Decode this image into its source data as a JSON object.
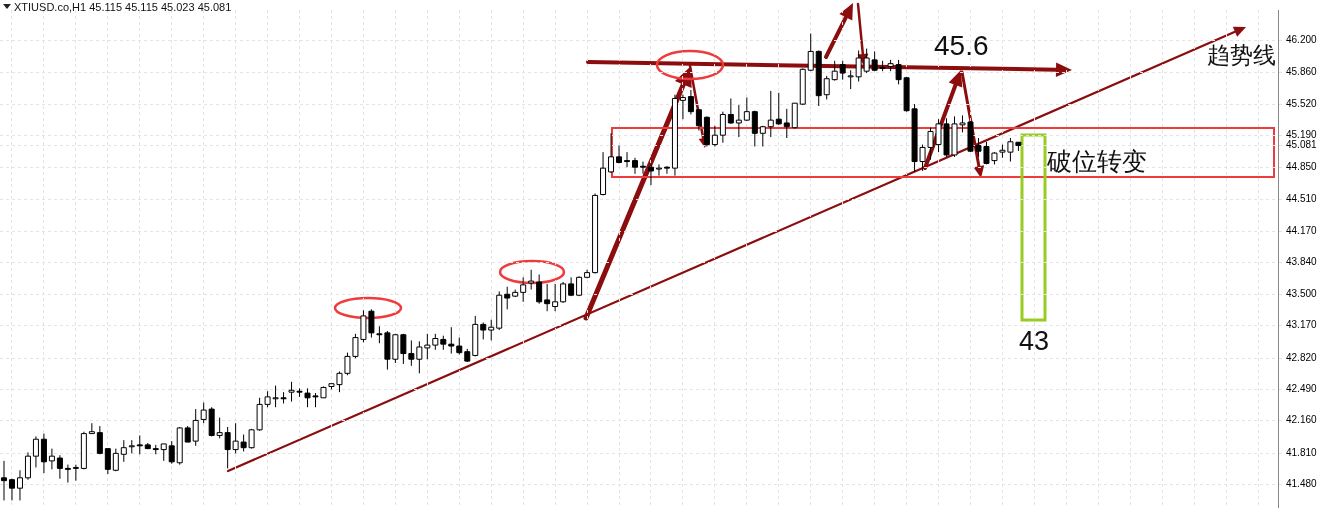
{
  "chart_data": {
    "type": "candlestick",
    "title": "XTIUSD.co,H1  45.115 45.115 45.023 45.081",
    "categories": [
      null,
      null,
      null,
      null,
      null,
      null,
      null,
      null,
      null,
      null,
      null,
      null,
      null,
      null,
      null,
      null,
      null,
      null,
      null,
      null,
      null,
      null,
      null,
      null,
      null,
      null,
      null,
      null,
      null,
      null,
      null,
      null,
      null,
      null,
      null,
      null,
      null,
      null,
      null,
      null,
      null,
      null,
      null,
      null,
      null,
      null,
      null,
      null,
      null,
      null,
      null,
      null,
      null,
      null,
      null,
      null,
      null,
      null,
      null,
      null,
      null,
      null,
      null,
      null,
      null,
      null,
      null,
      null,
      null,
      null,
      null,
      null,
      null,
      null,
      null,
      null,
      null,
      null,
      null,
      null,
      null,
      null,
      null,
      null,
      null,
      null,
      null,
      null,
      null,
      null,
      null,
      null,
      null,
      null,
      null,
      null,
      null,
      null,
      null,
      null,
      null,
      null,
      null,
      null,
      null,
      null,
      null,
      null,
      null,
      null,
      null,
      null,
      null,
      null,
      null,
      null,
      null,
      null,
      null,
      null,
      null,
      null,
      null,
      null,
      null,
      null,
      null,
      null,
      null,
      null,
      null,
      null,
      null,
      null,
      null,
      null,
      null,
      null,
      null,
      null,
      null,
      null,
      null,
      null,
      null,
      null,
      null,
      null,
      null,
      null,
      null,
      null,
      null,
      null,
      null,
      null,
      null,
      null,
      null,
      null
    ],
    "ohlc": [
      [
        41.55,
        41.73,
        41.31,
        41.52
      ],
      [
        41.53,
        41.54,
        41.31,
        41.44
      ],
      [
        41.44,
        41.63,
        41.31,
        41.55
      ],
      [
        41.55,
        41.82,
        41.53,
        41.78
      ],
      [
        41.78,
        41.99,
        41.66,
        41.96
      ],
      [
        41.96,
        42.02,
        41.6,
        41.72
      ],
      [
        41.73,
        41.86,
        41.64,
        41.78
      ],
      [
        41.76,
        41.79,
        41.54,
        41.65
      ],
      [
        41.65,
        41.69,
        41.5,
        41.64
      ],
      [
        41.65,
        41.69,
        41.52,
        41.66
      ],
      [
        41.65,
        42.04,
        41.64,
        42.02
      ],
      [
        42.02,
        42.13,
        42.02,
        42.04
      ],
      [
        42.03,
        42.1,
        41.8,
        41.81
      ],
      [
        41.86,
        41.86,
        41.59,
        41.64
      ],
      [
        41.63,
        41.86,
        41.62,
        41.81
      ],
      [
        41.8,
        41.95,
        41.72,
        41.87
      ],
      [
        41.88,
        41.95,
        41.81,
        41.89
      ],
      [
        41.9,
        42.0,
        41.8,
        41.89
      ],
      [
        41.9,
        41.92,
        41.86,
        41.86
      ],
      [
        41.86,
        41.9,
        41.8,
        41.85
      ],
      [
        41.85,
        41.91,
        41.73,
        41.91
      ],
      [
        41.89,
        41.94,
        41.7,
        41.72
      ],
      [
        41.71,
        42.09,
        41.69,
        42.08
      ],
      [
        42.08,
        42.1,
        41.93,
        41.93
      ],
      [
        41.94,
        42.28,
        41.89,
        42.16
      ],
      [
        42.17,
        42.35,
        42.13,
        42.27
      ],
      [
        42.28,
        42.3,
        41.99,
        42.0
      ],
      [
        42.0,
        42.19,
        41.97,
        42.03
      ],
      [
        42.03,
        42.09,
        41.65,
        41.85
      ],
      [
        41.85,
        42.13,
        41.81,
        41.94
      ],
      [
        41.93,
        42.01,
        41.83,
        41.87
      ],
      [
        41.87,
        42.07,
        41.86,
        42.06
      ],
      [
        42.06,
        42.4,
        42.05,
        42.33
      ],
      [
        42.33,
        42.47,
        42.3,
        42.41
      ],
      [
        42.39,
        42.53,
        42.3,
        42.4
      ],
      [
        42.4,
        42.46,
        42.34,
        42.39
      ],
      [
        42.46,
        42.57,
        42.36,
        42.48
      ],
      [
        42.47,
        42.5,
        42.41,
        42.46
      ],
      [
        42.45,
        42.5,
        42.3,
        42.4
      ],
      [
        42.42,
        42.45,
        42.3,
        42.41
      ],
      [
        42.4,
        42.52,
        42.4,
        42.51
      ],
      [
        42.52,
        42.55,
        42.49,
        42.55
      ],
      [
        42.54,
        42.68,
        42.46,
        42.66
      ],
      [
        42.66,
        42.88,
        42.64,
        42.84
      ],
      [
        42.84,
        43.08,
        42.82,
        43.04
      ],
      [
        43.02,
        43.33,
        42.99,
        43.27
      ],
      [
        43.32,
        43.34,
        43.04,
        43.09
      ],
      [
        43.08,
        43.16,
        42.98,
        43.07
      ],
      [
        43.09,
        43.11,
        42.7,
        42.81
      ],
      [
        42.81,
        43.08,
        42.77,
        43.07
      ],
      [
        43.07,
        43.08,
        42.76,
        42.87
      ],
      [
        42.87,
        43.01,
        42.74,
        42.81
      ],
      [
        42.81,
        43.0,
        42.66,
        42.94
      ],
      [
        42.93,
        43.08,
        42.81,
        42.96
      ],
      [
        42.96,
        43.08,
        42.91,
        43.03
      ],
      [
        43.02,
        43.06,
        42.91,
        42.97
      ],
      [
        42.97,
        43.15,
        42.87,
        42.95
      ],
      [
        42.95,
        43.04,
        42.86,
        42.88
      ],
      [
        42.89,
        42.92,
        42.78,
        42.79
      ],
      [
        42.85,
        43.27,
        42.84,
        43.18
      ],
      [
        43.18,
        43.2,
        43.02,
        43.12
      ],
      [
        43.12,
        43.23,
        43.01,
        43.15
      ],
      [
        43.14,
        43.53,
        43.12,
        43.49
      ],
      [
        43.5,
        43.58,
        43.34,
        43.46
      ],
      [
        43.48,
        43.55,
        43.47,
        43.52
      ],
      [
        43.52,
        43.68,
        43.42,
        43.6
      ],
      [
        43.62,
        43.76,
        43.55,
        43.64
      ],
      [
        43.63,
        43.71,
        43.4,
        43.42
      ],
      [
        43.44,
        43.61,
        43.32,
        43.4
      ],
      [
        43.37,
        43.61,
        43.32,
        43.42
      ],
      [
        43.42,
        43.63,
        43.41,
        43.61
      ],
      [
        43.61,
        43.68,
        43.48,
        43.49
      ],
      [
        43.49,
        43.69,
        43.48,
        43.68
      ],
      [
        43.68,
        43.76,
        43.67,
        43.73
      ],
      [
        43.73,
        44.57,
        43.72,
        44.55
      ],
      [
        44.56,
        45.01,
        44.55,
        44.84
      ],
      [
        44.8,
        45.21,
        44.79,
        44.96
      ],
      [
        44.96,
        45.08,
        44.89,
        44.9
      ],
      [
        44.92,
        45.01,
        44.85,
        44.91
      ],
      [
        44.92,
        44.95,
        44.78,
        44.85
      ],
      [
        44.86,
        44.91,
        44.78,
        44.85
      ],
      [
        44.85,
        44.88,
        44.66,
        44.81
      ],
      [
        44.83,
        44.88,
        44.76,
        44.84
      ],
      [
        44.85,
        44.86,
        44.78,
        44.84
      ],
      [
        44.84,
        45.62,
        44.76,
        45.58
      ],
      [
        45.56,
        45.62,
        45.36,
        45.59
      ],
      [
        45.6,
        45.67,
        45.41,
        45.44
      ],
      [
        45.46,
        45.47,
        45.24,
        45.29
      ],
      [
        45.38,
        45.39,
        45.07,
        45.09
      ],
      [
        45.09,
        45.29,
        45.07,
        45.19
      ],
      [
        45.19,
        45.44,
        45.11,
        45.41
      ],
      [
        45.41,
        45.58,
        45.31,
        45.32
      ],
      [
        45.32,
        45.51,
        45.17,
        45.35
      ],
      [
        45.35,
        45.59,
        45.34,
        45.44
      ],
      [
        45.44,
        45.45,
        45.07,
        45.21
      ],
      [
        45.21,
        45.29,
        45.07,
        45.28
      ],
      [
        45.28,
        45.66,
        45.17,
        45.35
      ],
      [
        45.36,
        45.64,
        45.3,
        45.31
      ],
      [
        45.32,
        45.47,
        45.16,
        45.28
      ],
      [
        45.27,
        45.53,
        45.26,
        45.53
      ],
      [
        45.52,
        45.9,
        45.51,
        45.89
      ],
      [
        45.88,
        46.27,
        45.87,
        46.08
      ],
      [
        46.08,
        46.09,
        45.5,
        45.61
      ],
      [
        45.62,
        45.82,
        45.57,
        45.79
      ],
      [
        45.78,
        45.98,
        45.77,
        45.87
      ],
      [
        45.94,
        45.98,
        45.78,
        45.85
      ],
      [
        45.81,
        45.88,
        45.68,
        45.82
      ],
      [
        45.81,
        46.09,
        45.76,
        46.01
      ],
      [
        45.87,
        46.11,
        45.85,
        46.01
      ],
      [
        45.99,
        46.08,
        45.87,
        45.88
      ],
      [
        45.91,
        45.98,
        45.87,
        45.9
      ],
      [
        45.92,
        45.99,
        45.87,
        45.95
      ],
      [
        45.94,
        45.99,
        45.73,
        45.78
      ],
      [
        45.8,
        45.81,
        45.44,
        45.45
      ],
      [
        45.47,
        45.52,
        44.8,
        44.91
      ],
      [
        44.91,
        45.09,
        44.81,
        45.06
      ],
      [
        45.06,
        45.27,
        44.93,
        45.23
      ],
      [
        45.09,
        45.36,
        45.01,
        45.31
      ],
      [
        45.31,
        45.37,
        44.96,
        44.98
      ],
      [
        44.98,
        45.39,
        44.96,
        45.31
      ],
      [
        45.3,
        45.4,
        45.22,
        45.32
      ],
      [
        45.33,
        45.34,
        45.01,
        45.02
      ],
      [
        45.08,
        45.16,
        44.96,
        45.02
      ],
      [
        45.07,
        45.12,
        44.88,
        44.89
      ],
      [
        44.92,
        45.01,
        44.88,
        45.0
      ],
      [
        45.01,
        45.09,
        44.95,
        45.03
      ],
      [
        45.01,
        45.16,
        44.91,
        45.12
      ],
      [
        45.115,
        45.115,
        45.023,
        45.081
      ],
      null,
      null,
      null,
      null,
      null,
      null,
      null,
      null,
      null,
      null,
      null,
      null,
      null,
      null,
      null,
      null,
      null,
      null,
      null,
      null,
      null,
      null,
      null,
      null,
      null,
      null,
      null,
      null,
      null,
      null,
      null,
      null
    ],
    "ylim": [
      41.24,
      46.52
    ],
    "yticks": [
      {
        "value": 41.48,
        "label": "41.480"
      },
      {
        "value": 41.81,
        "label": "41.810"
      },
      {
        "value": 42.16,
        "label": "42.160"
      },
      {
        "value": 42.49,
        "label": "42.490"
      },
      {
        "value": 42.82,
        "label": "42.820"
      },
      {
        "value": 43.17,
        "label": "43.170"
      },
      {
        "value": 43.5,
        "label": "43.500"
      },
      {
        "value": 43.84,
        "label": "43.840"
      },
      {
        "value": 44.17,
        "label": "44.170"
      },
      {
        "value": 44.51,
        "label": "44.510"
      },
      {
        "value": 44.85,
        "label": "44.850"
      },
      {
        "value": 45.081,
        "label": "45.081"
      },
      {
        "value": 45.19,
        "label": "45.190"
      },
      {
        "value": 45.52,
        "label": "45.520"
      },
      {
        "value": 45.86,
        "label": "45.860"
      },
      {
        "value": 46.2,
        "label": "46.200"
      }
    ],
    "tick_labels": "y",
    "grid": true,
    "annotations": [
      "45.6",
      "趋势线",
      "破位转变",
      "43"
    ]
  }
}
